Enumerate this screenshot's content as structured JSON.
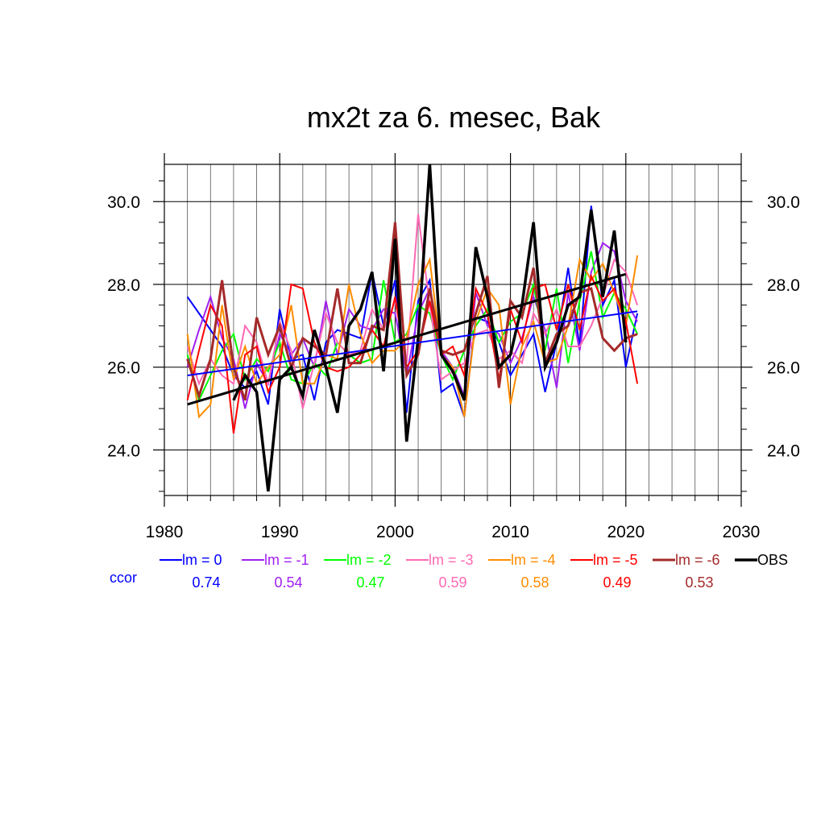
{
  "chart_data": {
    "type": "line",
    "title": "mx2t za 6. mesec, Bak",
    "xlabel": "",
    "ylabel": "",
    "xlim": [
      1980,
      2030
    ],
    "ylim": [
      22.9,
      30.9
    ],
    "x_ticks": [
      1980,
      1990,
      2000,
      2010,
      2020,
      2030
    ],
    "x_tick_labels": [
      "1980",
      "1990",
      "2000",
      "2010",
      "2020",
      "2030"
    ],
    "y_ticks": [
      24.0,
      26.0,
      28.0,
      30.0
    ],
    "y_tick_labels": [
      "24.0",
      "26.0",
      "28.0",
      "30.0"
    ],
    "grid": true,
    "legend_position": "bottom",
    "ccor_label": "ccor",
    "x": [
      1982,
      1983,
      1984,
      1985,
      1986,
      1987,
      1988,
      1989,
      1990,
      1991,
      1992,
      1993,
      1994,
      1995,
      1996,
      1997,
      1998,
      1999,
      2000,
      2001,
      2002,
      2003,
      2004,
      2005,
      2006,
      2007,
      2008,
      2009,
      2010,
      2011,
      2012,
      2013,
      2014,
      2015,
      2016,
      2017,
      2018,
      2019,
      2020,
      2021
    ],
    "series": [
      {
        "name": "lm = 0",
        "color": "#0000ff",
        "width": 2,
        "ccor": "0.74",
        "values": [
          27.7,
          27.3,
          26.9,
          26.5,
          25.8,
          25.5,
          25.9,
          25.1,
          27.4,
          26.2,
          26.3,
          25.2,
          26.6,
          26.9,
          26.8,
          26.7,
          28.3,
          27.0,
          28.1,
          24.9,
          27.6,
          28.1,
          25.4,
          25.6,
          24.8,
          27.2,
          27.1,
          26.6,
          25.8,
          26.3,
          26.8,
          25.4,
          26.6,
          28.4,
          26.5,
          29.9,
          27.5,
          28.1,
          26.0,
          27.3
        ]
      },
      {
        "name": "lm = -1",
        "color": "#a020f0",
        "width": 2,
        "ccor": "0.54",
        "values": [
          26.0,
          26.9,
          27.7,
          26.7,
          26.2,
          25.0,
          26.1,
          25.6,
          26.8,
          26.3,
          26.7,
          26.0,
          27.6,
          26.3,
          27.4,
          27.0,
          26.9,
          27.4,
          27.3,
          25.8,
          27.3,
          27.9,
          26.4,
          26.0,
          25.3,
          27.8,
          27.0,
          26.8,
          26.1,
          26.7,
          27.7,
          26.9,
          25.5,
          27.8,
          26.4,
          28.3,
          29.0,
          28.8,
          27.6,
          27.1
        ]
      },
      {
        "name": "lm = -2",
        "color": "#00ff00",
        "width": 2,
        "ccor": "0.47",
        "values": [
          26.3,
          25.2,
          25.8,
          26.4,
          26.8,
          25.7,
          26.2,
          25.9,
          26.6,
          25.7,
          25.6,
          26.1,
          25.8,
          26.6,
          26.3,
          26.1,
          26.2,
          28.1,
          26.6,
          26.8,
          27.5,
          27.3,
          26.3,
          25.7,
          26.4,
          27.0,
          27.4,
          26.6,
          27.1,
          27.3,
          28.0,
          26.4,
          27.9,
          26.1,
          27.6,
          28.8,
          27.2,
          27.8,
          27.4,
          26.8
        ]
      },
      {
        "name": "lm = -3",
        "color": "#ff69b4",
        "width": 2,
        "ccor": "0.59",
        "values": [
          26.5,
          25.6,
          26.2,
          25.8,
          25.6,
          27.0,
          26.6,
          25.6,
          27.1,
          26.4,
          25.0,
          26.1,
          27.3,
          26.6,
          26.3,
          26.4,
          27.4,
          26.9,
          27.6,
          26.1,
          29.7,
          27.5,
          25.7,
          25.9,
          26.1,
          26.8,
          26.9,
          26.2,
          26.4,
          26.1,
          27.3,
          26.8,
          27.4,
          26.5,
          26.5,
          27.0,
          27.7,
          28.6,
          28.3,
          27.5
        ]
      },
      {
        "name": "lm = -4",
        "color": "#ff8c00",
        "width": 2,
        "ccor": "0.58",
        "values": [
          26.8,
          24.8,
          25.1,
          27.5,
          25.7,
          26.5,
          25.6,
          26.0,
          26.3,
          27.5,
          25.6,
          25.6,
          26.3,
          26.2,
          28.0,
          26.8,
          26.1,
          26.4,
          26.4,
          26.7,
          28.0,
          28.6,
          26.3,
          26.0,
          24.8,
          27.1,
          27.9,
          27.5,
          25.1,
          26.5,
          27.1,
          26.1,
          26.2,
          27.0,
          28.6,
          28.1,
          28.5,
          27.8,
          27.0,
          28.7
        ]
      },
      {
        "name": "lm = -5",
        "color": "#ff0000",
        "width": 2,
        "ccor": "0.49",
        "values": [
          25.2,
          26.4,
          27.5,
          27.0,
          24.4,
          26.3,
          26.5,
          25.4,
          26.0,
          28.0,
          27.9,
          26.6,
          26.0,
          25.9,
          26.0,
          26.3,
          26.9,
          26.5,
          27.7,
          26.0,
          26.4,
          27.6,
          26.3,
          26.5,
          25.8,
          27.9,
          27.3,
          25.7,
          27.4,
          26.6,
          27.9,
          28.0,
          26.9,
          28.0,
          26.9,
          28.2,
          27.6,
          27.9,
          27.1,
          25.6
        ]
      },
      {
        "name": "lm = -6",
        "color": "#a52a2a",
        "width": 3,
        "ccor": "0.53",
        "values": [
          26.2,
          25.3,
          26.2,
          28.1,
          26.0,
          25.2,
          27.2,
          26.3,
          27.0,
          26.0,
          26.7,
          26.5,
          26.3,
          27.9,
          26.1,
          26.1,
          27.0,
          26.9,
          29.5,
          25.8,
          26.3,
          27.9,
          26.4,
          26.3,
          26.4,
          27.3,
          28.2,
          25.5,
          27.6,
          27.2,
          28.4,
          26.1,
          26.8,
          27.0,
          27.8,
          27.9,
          26.7,
          26.4,
          26.7,
          26.8
        ]
      },
      {
        "name": "OBS",
        "color": "#000000",
        "width": 3.5,
        "ccor": "",
        "values": [
          null,
          null,
          null,
          null,
          25.2,
          25.8,
          25.4,
          23.0,
          25.7,
          26.0,
          25.3,
          26.9,
          26.0,
          24.9,
          27.0,
          27.4,
          28.3,
          25.9,
          29.1,
          24.2,
          26.7,
          30.9,
          26.3,
          25.9,
          25.2,
          28.9,
          27.7,
          26.0,
          26.3,
          27.5,
          29.5,
          26.0,
          26.6,
          27.5,
          27.7,
          29.8,
          27.7,
          29.3,
          26.6,
          null
        ]
      }
    ],
    "trend_lines": [
      {
        "name": "lm = 0 trend",
        "color": "#0000ff",
        "width": 2,
        "x": [
          1982,
          2021
        ],
        "y": [
          25.8,
          27.35
        ]
      },
      {
        "name": "OBS trend",
        "color": "#000000",
        "width": 3,
        "x": [
          1982,
          2020
        ],
        "y": [
          25.1,
          28.25
        ]
      }
    ]
  }
}
